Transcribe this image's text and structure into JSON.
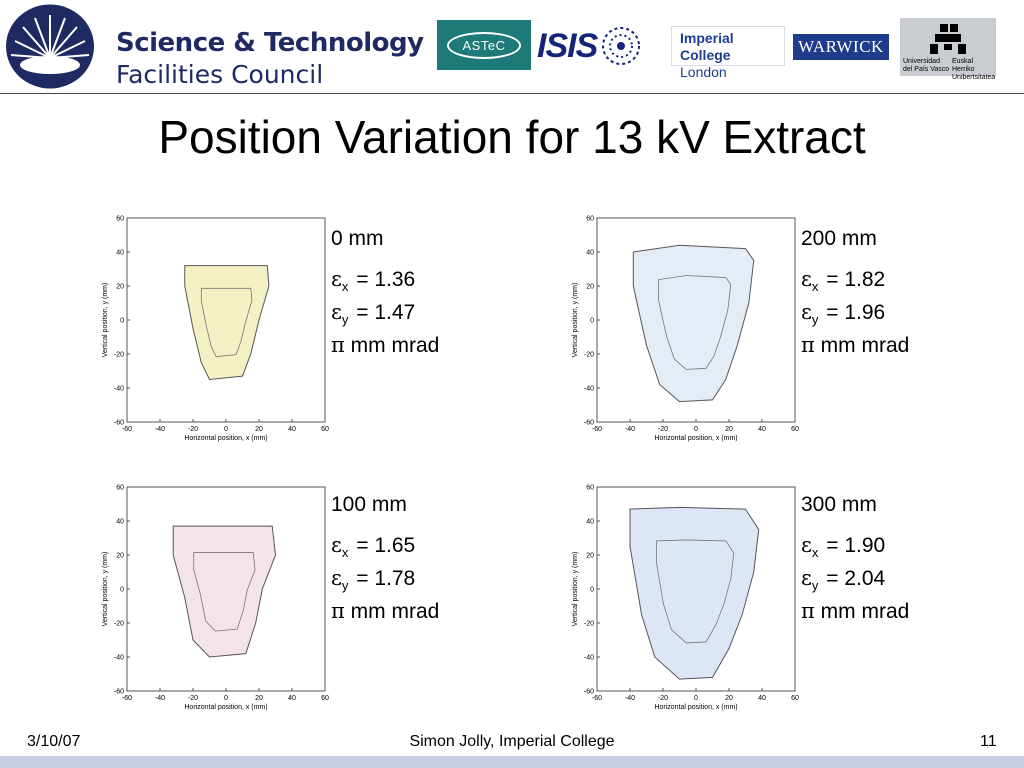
{
  "header": {
    "stfc_line1": "Science & Technology",
    "stfc_line2": "Facilities Council",
    "astec": "ASTeC",
    "isis": "ISIS",
    "imperial_line1": "Imperial College",
    "imperial_line2": "London",
    "warwick": "WARWICK",
    "upv_left": [
      "Universidad",
      "del País Vasco"
    ],
    "upv_right": [
      "Euskal Herriko",
      "Unibertsitatea"
    ]
  },
  "title": "Position Variation for 13 kV Extract",
  "symbols": {
    "epsilon": "ε",
    "pi": "π"
  },
  "chart_data": [
    {
      "type": "heatmap",
      "position": "0 mm",
      "eps_x": "1.36",
      "eps_y": "1.47",
      "units": "mm mrad",
      "xlabel": "Horizontal position, x (mm)",
      "ylabel": "Vertical position, y (mm)",
      "xticks": [
        -60,
        -40,
        -20,
        0,
        20,
        40,
        60
      ],
      "yticks": [
        60,
        40,
        20,
        0,
        -20,
        -40,
        -60
      ],
      "xlim": [
        -60,
        60
      ],
      "ylim": [
        -60,
        60
      ],
      "beam_outline": [
        [
          -25,
          32
        ],
        [
          25,
          32
        ],
        [
          26,
          20
        ],
        [
          20,
          0
        ],
        [
          15,
          -20
        ],
        [
          10,
          -33
        ],
        [
          -10,
          -35
        ],
        [
          -15,
          -25
        ],
        [
          -20,
          -5
        ],
        [
          -25,
          20
        ]
      ],
      "fill": "#f3f0c4"
    },
    {
      "type": "heatmap",
      "position": "200 mm",
      "eps_x": "1.82",
      "eps_y": "1.96",
      "units": "mm mrad",
      "xlabel": "Horizontal position, x (mm)",
      "ylabel": "Vertical position, y (mm)",
      "xticks": [
        -60,
        -40,
        -20,
        0,
        20,
        40,
        60
      ],
      "yticks": [
        60,
        40,
        20,
        0,
        -20,
        -40,
        -60
      ],
      "xlim": [
        -60,
        60
      ],
      "ylim": [
        -60,
        60
      ],
      "beam_outline": [
        [
          -38,
          40
        ],
        [
          -10,
          44
        ],
        [
          30,
          42
        ],
        [
          35,
          35
        ],
        [
          32,
          10
        ],
        [
          25,
          -15
        ],
        [
          18,
          -35
        ],
        [
          10,
          -47
        ],
        [
          -10,
          -48
        ],
        [
          -22,
          -38
        ],
        [
          -30,
          -15
        ],
        [
          -38,
          20
        ]
      ],
      "fill": "#e4ecf6"
    },
    {
      "type": "heatmap",
      "position": "100 mm",
      "eps_x": "1.65",
      "eps_y": "1.78",
      "units": "mm mrad",
      "xlabel": "Horizontal position, x (mm)",
      "ylabel": "Vertical position, y (mm)",
      "xticks": [
        -60,
        -40,
        -20,
        0,
        20,
        40,
        60
      ],
      "yticks": [
        60,
        40,
        20,
        0,
        -20,
        -40,
        -60
      ],
      "xlim": [
        -60,
        60
      ],
      "ylim": [
        -60,
        60
      ],
      "beam_outline": [
        [
          -32,
          37
        ],
        [
          28,
          37
        ],
        [
          30,
          20
        ],
        [
          22,
          0
        ],
        [
          18,
          -20
        ],
        [
          12,
          -38
        ],
        [
          -10,
          -40
        ],
        [
          -20,
          -30
        ],
        [
          -25,
          -5
        ],
        [
          -32,
          20
        ]
      ],
      "fill": "#f4e4e8"
    },
    {
      "type": "heatmap",
      "position": "300 mm",
      "eps_x": "1.90",
      "eps_y": "2.04",
      "units": "mm mrad",
      "xlabel": "Horizontal position, x (mm)",
      "ylabel": "Vertical position, y (mm)",
      "xticks": [
        -60,
        -40,
        -20,
        0,
        20,
        40,
        60
      ],
      "yticks": [
        60,
        40,
        20,
        0,
        -20,
        -40,
        -60
      ],
      "xlim": [
        -60,
        60
      ],
      "ylim": [
        -60,
        60
      ],
      "beam_outline": [
        [
          -40,
          47
        ],
        [
          -10,
          48
        ],
        [
          30,
          47
        ],
        [
          38,
          35
        ],
        [
          35,
          10
        ],
        [
          28,
          -15
        ],
        [
          20,
          -35
        ],
        [
          10,
          -52
        ],
        [
          -10,
          -53
        ],
        [
          -25,
          -40
        ],
        [
          -33,
          -15
        ],
        [
          -40,
          25
        ]
      ],
      "fill": "#dde6f5"
    }
  ],
  "footer": {
    "date": "3/10/07",
    "author": "Simon Jolly, Imperial College",
    "page": "11"
  }
}
